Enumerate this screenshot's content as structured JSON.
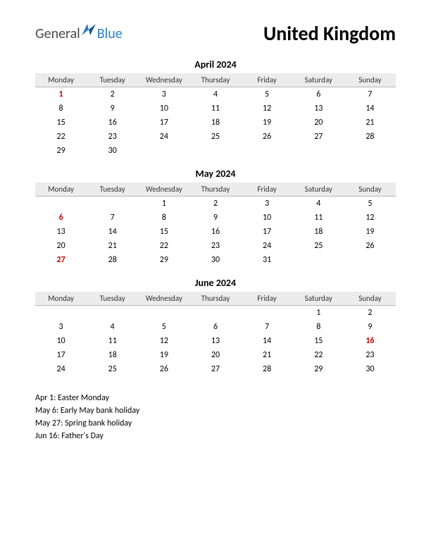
{
  "logo": {
    "text_general": "General",
    "text_blue": "Blue",
    "icon_color": "#2b7fc4"
  },
  "title": "United Kingdom",
  "weekdays": [
    "Monday",
    "Tuesday",
    "Wednesday",
    "Thursday",
    "Friday",
    "Saturday",
    "Sunday"
  ],
  "months": [
    {
      "title": "April 2024",
      "rows": [
        [
          {
            "d": "1",
            "h": true
          },
          {
            "d": "2"
          },
          {
            "d": "3"
          },
          {
            "d": "4"
          },
          {
            "d": "5"
          },
          {
            "d": "6"
          },
          {
            "d": "7"
          }
        ],
        [
          {
            "d": "8"
          },
          {
            "d": "9"
          },
          {
            "d": "10"
          },
          {
            "d": "11"
          },
          {
            "d": "12"
          },
          {
            "d": "13"
          },
          {
            "d": "14"
          }
        ],
        [
          {
            "d": "15"
          },
          {
            "d": "16"
          },
          {
            "d": "17"
          },
          {
            "d": "18"
          },
          {
            "d": "19"
          },
          {
            "d": "20"
          },
          {
            "d": "21"
          }
        ],
        [
          {
            "d": "22"
          },
          {
            "d": "23"
          },
          {
            "d": "24"
          },
          {
            "d": "25"
          },
          {
            "d": "26"
          },
          {
            "d": "27"
          },
          {
            "d": "28"
          }
        ],
        [
          {
            "d": "29"
          },
          {
            "d": "30"
          },
          {
            "d": ""
          },
          {
            "d": ""
          },
          {
            "d": ""
          },
          {
            "d": ""
          },
          {
            "d": ""
          }
        ]
      ]
    },
    {
      "title": "May 2024",
      "rows": [
        [
          {
            "d": ""
          },
          {
            "d": ""
          },
          {
            "d": "1"
          },
          {
            "d": "2"
          },
          {
            "d": "3"
          },
          {
            "d": "4"
          },
          {
            "d": "5"
          }
        ],
        [
          {
            "d": "6",
            "h": true
          },
          {
            "d": "7"
          },
          {
            "d": "8"
          },
          {
            "d": "9"
          },
          {
            "d": "10"
          },
          {
            "d": "11"
          },
          {
            "d": "12"
          }
        ],
        [
          {
            "d": "13"
          },
          {
            "d": "14"
          },
          {
            "d": "15"
          },
          {
            "d": "16"
          },
          {
            "d": "17"
          },
          {
            "d": "18"
          },
          {
            "d": "19"
          }
        ],
        [
          {
            "d": "20"
          },
          {
            "d": "21"
          },
          {
            "d": "22"
          },
          {
            "d": "23"
          },
          {
            "d": "24"
          },
          {
            "d": "25"
          },
          {
            "d": "26"
          }
        ],
        [
          {
            "d": "27",
            "h": true
          },
          {
            "d": "28"
          },
          {
            "d": "29"
          },
          {
            "d": "30"
          },
          {
            "d": "31"
          },
          {
            "d": ""
          },
          {
            "d": ""
          }
        ]
      ]
    },
    {
      "title": "June 2024",
      "rows": [
        [
          {
            "d": ""
          },
          {
            "d": ""
          },
          {
            "d": ""
          },
          {
            "d": ""
          },
          {
            "d": ""
          },
          {
            "d": "1"
          },
          {
            "d": "2"
          }
        ],
        [
          {
            "d": "3"
          },
          {
            "d": "4"
          },
          {
            "d": "5"
          },
          {
            "d": "6"
          },
          {
            "d": "7"
          },
          {
            "d": "8"
          },
          {
            "d": "9"
          }
        ],
        [
          {
            "d": "10"
          },
          {
            "d": "11"
          },
          {
            "d": "12"
          },
          {
            "d": "13"
          },
          {
            "d": "14"
          },
          {
            "d": "15"
          },
          {
            "d": "16",
            "h": true
          }
        ],
        [
          {
            "d": "17"
          },
          {
            "d": "18"
          },
          {
            "d": "19"
          },
          {
            "d": "20"
          },
          {
            "d": "21"
          },
          {
            "d": "22"
          },
          {
            "d": "23"
          }
        ],
        [
          {
            "d": "24"
          },
          {
            "d": "25"
          },
          {
            "d": "26"
          },
          {
            "d": "27"
          },
          {
            "d": "28"
          },
          {
            "d": "29"
          },
          {
            "d": "30"
          }
        ]
      ]
    }
  ],
  "holidays": [
    "Apr 1: Easter Monday",
    "May 6: Early May bank holiday",
    "May 27: Spring bank holiday",
    "Jun 16: Father's Day"
  ],
  "colors": {
    "holiday_text": "#c00000",
    "header_bg": "#ececec",
    "header_border": "#b8b8b8"
  }
}
